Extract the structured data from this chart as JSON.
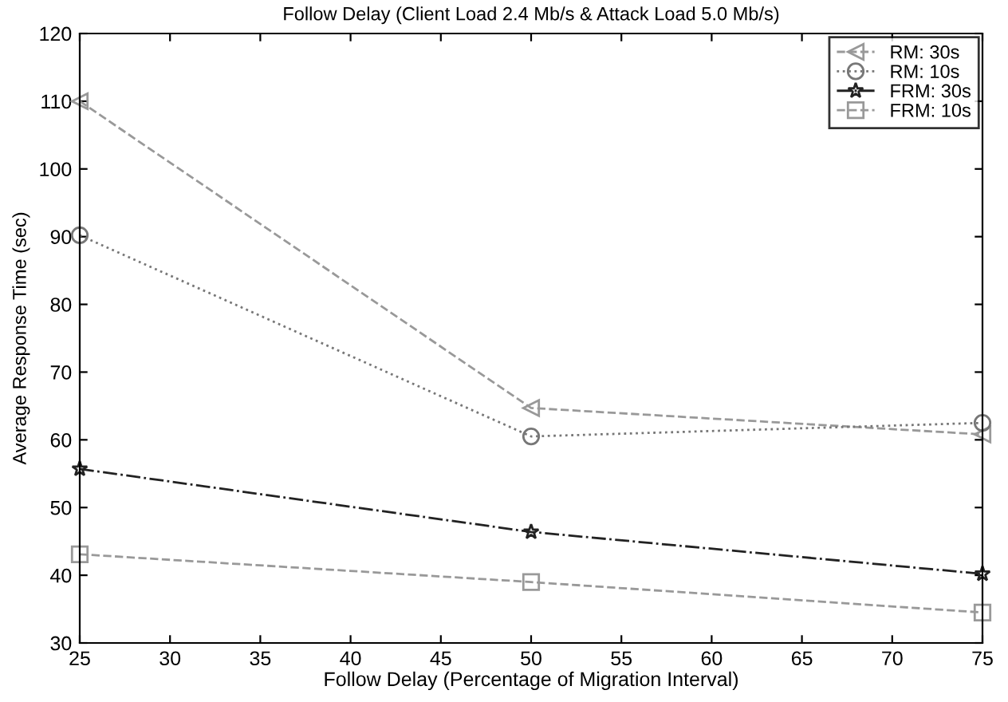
{
  "chart_data": {
    "type": "line",
    "title": "Follow Delay (Client Load 2.4 Mb/s & Attack Load 5.0 Mb/s)",
    "xlabel": "Follow Delay (Percentage of Migration Interval)",
    "ylabel": "Average Response Time (sec)",
    "x": [
      25,
      50,
      75
    ],
    "series": [
      {
        "name": "RM: 30s",
        "color": "#999999",
        "marker": "triangle",
        "line_style": "dashed",
        "values": [
          110,
          64.7,
          60.8
        ]
      },
      {
        "name": "RM: 10s",
        "color": "#777777",
        "marker": "circle",
        "line_style": "dotted",
        "values": [
          90.2,
          60.5,
          62.5
        ]
      },
      {
        "name": "FRM: 30s",
        "color": "#222222",
        "marker": "star",
        "line_style": "dashdot",
        "values": [
          55.7,
          46.4,
          40.2
        ]
      },
      {
        "name": "FRM: 10s",
        "color": "#999999",
        "marker": "square",
        "line_style": "dashed",
        "values": [
          43.1,
          39,
          34.5
        ]
      }
    ],
    "xlim": [
      25,
      75
    ],
    "xticks": [
      25,
      30,
      35,
      40,
      45,
      50,
      55,
      60,
      65,
      70,
      75
    ],
    "ylim": [
      30,
      120
    ],
    "yticks": [
      30,
      40,
      50,
      60,
      70,
      80,
      90,
      100,
      110,
      120
    ],
    "grid": false,
    "legend": "top right"
  }
}
